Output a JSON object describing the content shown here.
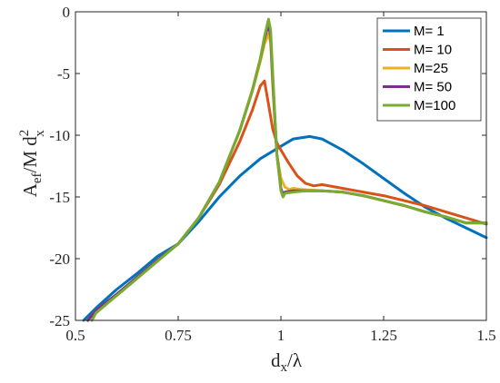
{
  "chart_data": {
    "type": "line",
    "xlabel": {
      "base": "d",
      "sub": "x",
      "rest": "/λ"
    },
    "ylabel": {
      "base": "A",
      "sub": "ef",
      "mid": "/M d",
      "sup": "2",
      "sub2": "x"
    },
    "xlim": [
      0.5,
      1.5
    ],
    "ylim": [
      -25,
      0
    ],
    "xticks": [
      0.5,
      0.75,
      1,
      1.25,
      1.5
    ],
    "xtick_labels": [
      "0.5",
      "0.75",
      "1",
      "1.25",
      "1.5"
    ],
    "yticks": [
      -25,
      -20,
      -15,
      -10,
      -5,
      0
    ],
    "ytick_labels": [
      "-25",
      "-20",
      "-15",
      "-10",
      "-5",
      "0"
    ],
    "grid": false,
    "legend_position": "top-right",
    "series": [
      {
        "name": "M= 1",
        "color": "#0072BD",
        "x": [
          0.52,
          0.55,
          0.6,
          0.65,
          0.7,
          0.75,
          0.8,
          0.85,
          0.9,
          0.95,
          1.0,
          1.03,
          1.07,
          1.1,
          1.15,
          1.2,
          1.25,
          1.3,
          1.35,
          1.4,
          1.45,
          1.5
        ],
        "y": [
          -25.0,
          -24.0,
          -22.5,
          -21.2,
          -19.8,
          -18.8,
          -17.0,
          -15.0,
          -13.3,
          -11.9,
          -10.9,
          -10.3,
          -10.1,
          -10.3,
          -11.2,
          -12.3,
          -13.5,
          -14.7,
          -15.8,
          -16.7,
          -17.5,
          -18.3
        ]
      },
      {
        "name": "M= 10",
        "color": "#D95319",
        "x": [
          0.53,
          0.55,
          0.6,
          0.65,
          0.7,
          0.75,
          0.8,
          0.85,
          0.9,
          0.93,
          0.95,
          0.96,
          0.97,
          0.98,
          0.99,
          1.0,
          1.02,
          1.04,
          1.06,
          1.08,
          1.1,
          1.15,
          1.2,
          1.25,
          1.3,
          1.35,
          1.4,
          1.45,
          1.5
        ],
        "y": [
          -25.0,
          -24.2,
          -22.9,
          -21.5,
          -20.1,
          -18.8,
          -16.7,
          -14.0,
          -10.5,
          -8.0,
          -6.0,
          -5.6,
          -7.5,
          -9.5,
          -10.6,
          -11.2,
          -12.3,
          -13.3,
          -13.9,
          -14.1,
          -14.0,
          -14.3,
          -14.6,
          -14.9,
          -15.3,
          -15.7,
          -16.2,
          -16.7,
          -17.2
        ]
      },
      {
        "name": "M=25",
        "color": "#EDB120",
        "x": [
          0.53,
          0.55,
          0.6,
          0.65,
          0.7,
          0.75,
          0.8,
          0.85,
          0.9,
          0.93,
          0.95,
          0.96,
          0.97,
          0.975,
          0.98,
          0.99,
          1.0,
          1.01,
          1.02,
          1.03,
          1.05,
          1.1,
          1.15,
          1.2,
          1.25,
          1.3,
          1.35,
          1.4,
          1.45,
          1.5
        ],
        "y": [
          -25.0,
          -24.2,
          -22.9,
          -21.5,
          -20.1,
          -18.8,
          -16.7,
          -13.8,
          -9.6,
          -6.5,
          -4.0,
          -2.6,
          -1.8,
          -2.5,
          -6.0,
          -11.5,
          -13.5,
          -14.2,
          -14.4,
          -14.3,
          -14.4,
          -14.5,
          -14.6,
          -14.9,
          -15.3,
          -15.7,
          -16.2,
          -16.6,
          -17.1,
          -17.1
        ]
      },
      {
        "name": "M= 50",
        "color": "#7E2F8E",
        "x": [
          0.53,
          0.55,
          0.6,
          0.65,
          0.7,
          0.75,
          0.8,
          0.85,
          0.9,
          0.93,
          0.95,
          0.96,
          0.97,
          0.975,
          0.98,
          0.99,
          1.0,
          1.005,
          1.01,
          1.03,
          1.06,
          1.1,
          1.15,
          1.2,
          1.25,
          1.3,
          1.35,
          1.4,
          1.45,
          1.5
        ],
        "y": [
          -25.0,
          -24.2,
          -22.9,
          -21.5,
          -20.1,
          -18.8,
          -16.7,
          -13.8,
          -9.6,
          -6.4,
          -3.8,
          -2.2,
          -1.0,
          -2.0,
          -5.5,
          -11.5,
          -14.3,
          -14.8,
          -14.6,
          -14.5,
          -14.5,
          -14.5,
          -14.6,
          -14.9,
          -15.3,
          -15.7,
          -16.2,
          -16.6,
          -17.1,
          -17.1
        ]
      },
      {
        "name": "M=100",
        "color": "#77AC30",
        "x": [
          0.54,
          0.55,
          0.6,
          0.65,
          0.7,
          0.75,
          0.8,
          0.85,
          0.9,
          0.93,
          0.95,
          0.96,
          0.97,
          0.975,
          0.98,
          0.99,
          1.0,
          1.005,
          1.01,
          1.03,
          1.06,
          1.1,
          1.15,
          1.2,
          1.25,
          1.3,
          1.35,
          1.4,
          1.45,
          1.5
        ],
        "y": [
          -25.0,
          -24.4,
          -23.0,
          -21.6,
          -20.2,
          -18.8,
          -16.7,
          -13.8,
          -9.6,
          -6.4,
          -3.8,
          -2.0,
          -0.6,
          -1.5,
          -5.0,
          -11.5,
          -14.5,
          -15.0,
          -14.7,
          -14.6,
          -14.5,
          -14.5,
          -14.6,
          -14.9,
          -15.3,
          -15.7,
          -16.2,
          -16.6,
          -17.1,
          -17.1
        ]
      }
    ]
  }
}
